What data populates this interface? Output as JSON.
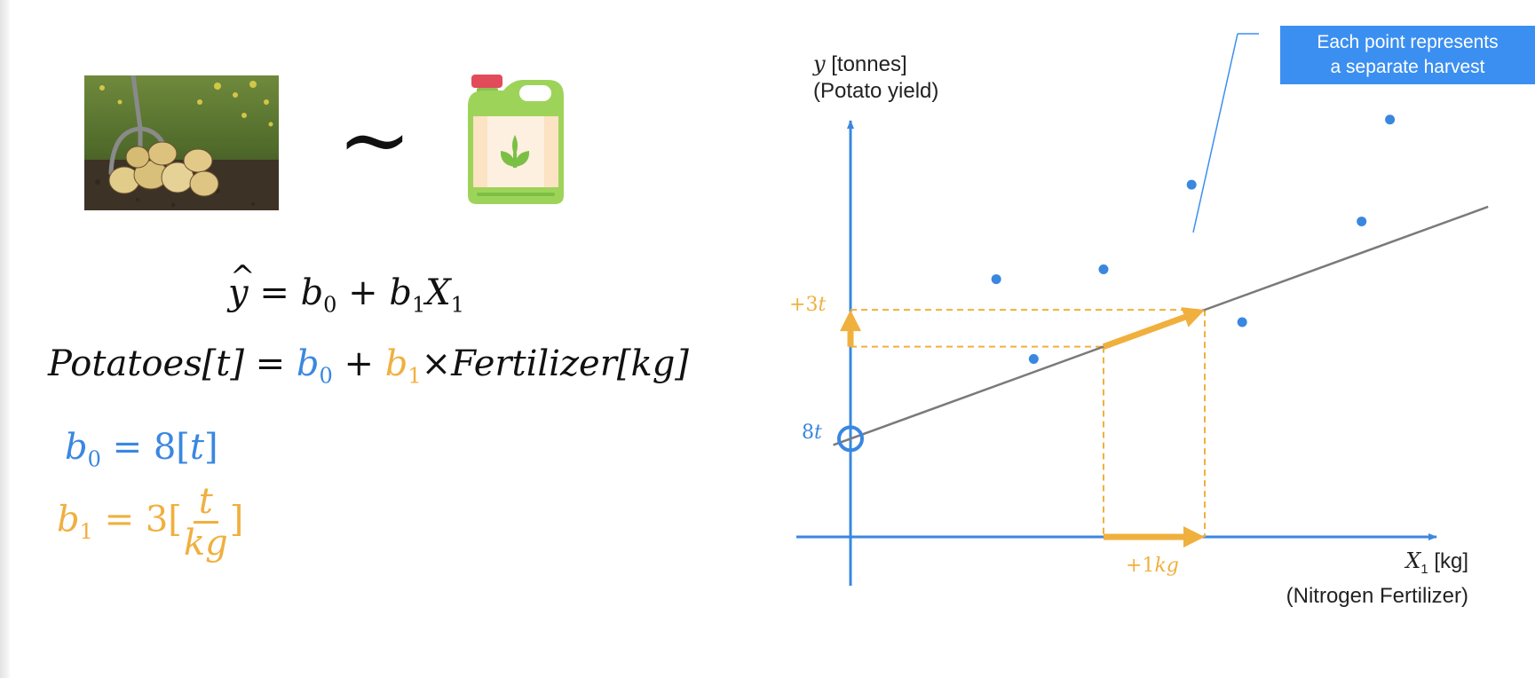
{
  "equations": {
    "general": {
      "lhs": "y",
      "equals": "=",
      "b0": "b",
      "b0_sub": "0",
      "plus": "+",
      "b1": "b",
      "b1_sub": "1",
      "x": "X",
      "x_sub": "1"
    },
    "specific": {
      "lhs": "Potatoes",
      "lhs_unit": "[t]",
      "equals": "=",
      "b0": "b",
      "b0_sub": "0",
      "plus": "+",
      "b1": "b",
      "b1_sub": "1",
      "times": "×",
      "rhs": "Fertilizer",
      "rhs_unit": "[kg]"
    },
    "b0_value": {
      "var": "b",
      "sub": "0",
      "equals": "=",
      "value": "8[",
      "unit": "t",
      "close": "]"
    },
    "b1_value": {
      "var": "b",
      "sub": "1",
      "equals": "=",
      "value": "3[",
      "num": "t",
      "den": "kg",
      "close": "]"
    }
  },
  "tilde": "~",
  "callout": {
    "line1": "Each point represents",
    "line2": "a separate harvest"
  },
  "colors": {
    "blue": "#3a87e0",
    "orange": "#f0b03e",
    "line": "#777777",
    "callout_bg": "#3b8ff0"
  },
  "icons": {
    "photo": "potato-harvest-photo",
    "fertilizer": "fertilizer-jug-icon"
  },
  "chart_data": {
    "type": "scatter",
    "title": "",
    "ylabel": {
      "var": "y",
      "unit": "[tonnes]",
      "description": "(Potato yield)"
    },
    "xlabel": {
      "var": "X",
      "sub": "1",
      "unit": "[kg]",
      "description": "(Nitrogen Fertilizer)"
    },
    "xlim": [
      0,
      6
    ],
    "ylim": [
      0,
      36
    ],
    "points": [
      {
        "x": 1.44,
        "y": 21.0
      },
      {
        "x": 1.81,
        "y": 14.5
      },
      {
        "x": 2.5,
        "y": 21.8
      },
      {
        "x": 3.37,
        "y": 28.7
      },
      {
        "x": 3.87,
        "y": 17.5
      },
      {
        "x": 5.05,
        "y": 25.7
      },
      {
        "x": 5.33,
        "y": 34.0
      }
    ],
    "regression": {
      "intercept": 8,
      "slope": 3,
      "x_start": -0.17,
      "x_end": 6.3
    },
    "annotation": {
      "x_from": 2.5,
      "x_to": 3.5
    },
    "intercept_label": {
      "value": "8",
      "unit": "t"
    },
    "rise_label": {
      "sign": "+",
      "value": "3",
      "unit": "t"
    },
    "run_label": {
      "sign": "+",
      "value": "1",
      "unit": "kg"
    }
  }
}
